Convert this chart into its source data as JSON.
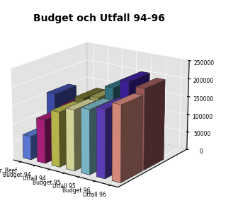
{
  "title": "Budget och Utfall 94-96",
  "categories": [
    "Mr. Beef",
    "Budget 94",
    "Utfall 94",
    "Budget 95",
    "Utfall 95",
    "Budget 96",
    "Utfall 96"
  ],
  "back_values": [
    155000,
    130000,
    160000,
    170000,
    205000,
    230000,
    220000
  ],
  "front_values": [
    65000,
    120000,
    150000,
    165000,
    175000,
    185000,
    205000
  ],
  "colors_back": [
    "#4455bb",
    "#7a1050",
    "#7a7a30",
    "#b0b060",
    "#3a8090",
    "#4422aa",
    "#aa6060"
  ],
  "colors_front": [
    "#6688ee",
    "#bb2288",
    "#cccc55",
    "#eeeeaa",
    "#88ccdd",
    "#6644cc",
    "#ee9988"
  ],
  "ylim": [
    0,
    250000
  ],
  "yticks": [
    0,
    50000,
    100000,
    150000,
    200000,
    250000
  ],
  "ytick_labels": [
    "0",
    "50000",
    "100000",
    "150000",
    "200000",
    "250000"
  ],
  "wall_color": "#c8c8c8",
  "floor_color": "#c0c0c0",
  "bg_color": "#ffffff",
  "title_fontsize": 10,
  "elev": 18,
  "azim": -55
}
